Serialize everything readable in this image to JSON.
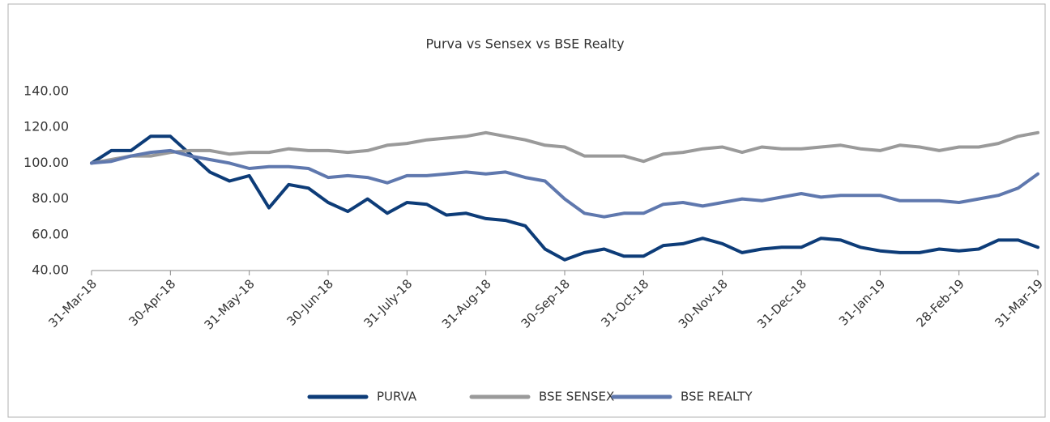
{
  "chart_data": {
    "type": "line",
    "title": "Purva vs Sensex vs BSE Realty",
    "categories": [
      "31-Mar-18",
      null,
      null,
      null,
      "30-Apr-18",
      null,
      null,
      null,
      "31-May-18",
      null,
      null,
      null,
      "30-Jun-18",
      null,
      null,
      null,
      "31-July-18",
      null,
      null,
      null,
      "31-Aug-18",
      null,
      null,
      null,
      "30-Sep-18",
      null,
      null,
      null,
      "31-Oct-18",
      null,
      null,
      null,
      "30-Nov-18",
      null,
      null,
      null,
      "31-Dec-18",
      null,
      null,
      null,
      "31-Jan-19",
      null,
      null,
      null,
      "28-Feb-19",
      null,
      null,
      null,
      "31-Mar-19"
    ],
    "series": [
      {
        "name": "PURVA",
        "color": "#0d3c78",
        "values": [
          100,
          107,
          107,
          115,
          115,
          105,
          95,
          90,
          93,
          75,
          88,
          86,
          78,
          73,
          80,
          72,
          78,
          77,
          71,
          72,
          69,
          68,
          65,
          52,
          46,
          50,
          52,
          48,
          48,
          54,
          55,
          58,
          55,
          50,
          52,
          53,
          53,
          58,
          57,
          53,
          51,
          50,
          50,
          52,
          51,
          52,
          57,
          57,
          53
        ]
      },
      {
        "name": "BSE SENSEX",
        "color": "#9a9a9a",
        "values": [
          100,
          102,
          104,
          104,
          106,
          107,
          107,
          105,
          106,
          106,
          108,
          107,
          107,
          106,
          107,
          110,
          111,
          113,
          114,
          115,
          117,
          115,
          113,
          110,
          109,
          104,
          104,
          104,
          101,
          105,
          106,
          108,
          109,
          106,
          109,
          108,
          108,
          109,
          110,
          108,
          107,
          110,
          109,
          107,
          109,
          109,
          111,
          115,
          117
        ]
      },
      {
        "name": "BSE REALTY",
        "color": "#5f78ae",
        "values": [
          100,
          101,
          104,
          106,
          107,
          104,
          102,
          100,
          97,
          98,
          98,
          97,
          92,
          93,
          92,
          89,
          93,
          93,
          94,
          95,
          94,
          95,
          92,
          90,
          80,
          72,
          70,
          72,
          72,
          77,
          78,
          76,
          78,
          80,
          79,
          81,
          83,
          81,
          82,
          82,
          82,
          79,
          79,
          79,
          78,
          80,
          82,
          86,
          94
        ]
      }
    ],
    "ylim": [
      40,
      140
    ],
    "yticks": [
      {
        "value": 40,
        "label": "40.00"
      },
      {
        "value": 60,
        "label": "60.00"
      },
      {
        "value": 80,
        "label": "80.00"
      },
      {
        "value": 100,
        "label": "100.00"
      },
      {
        "value": 120,
        "label": "120.00"
      },
      {
        "value": 140,
        "label": "140.00"
      }
    ],
    "grid": false,
    "legend": "bottom"
  }
}
